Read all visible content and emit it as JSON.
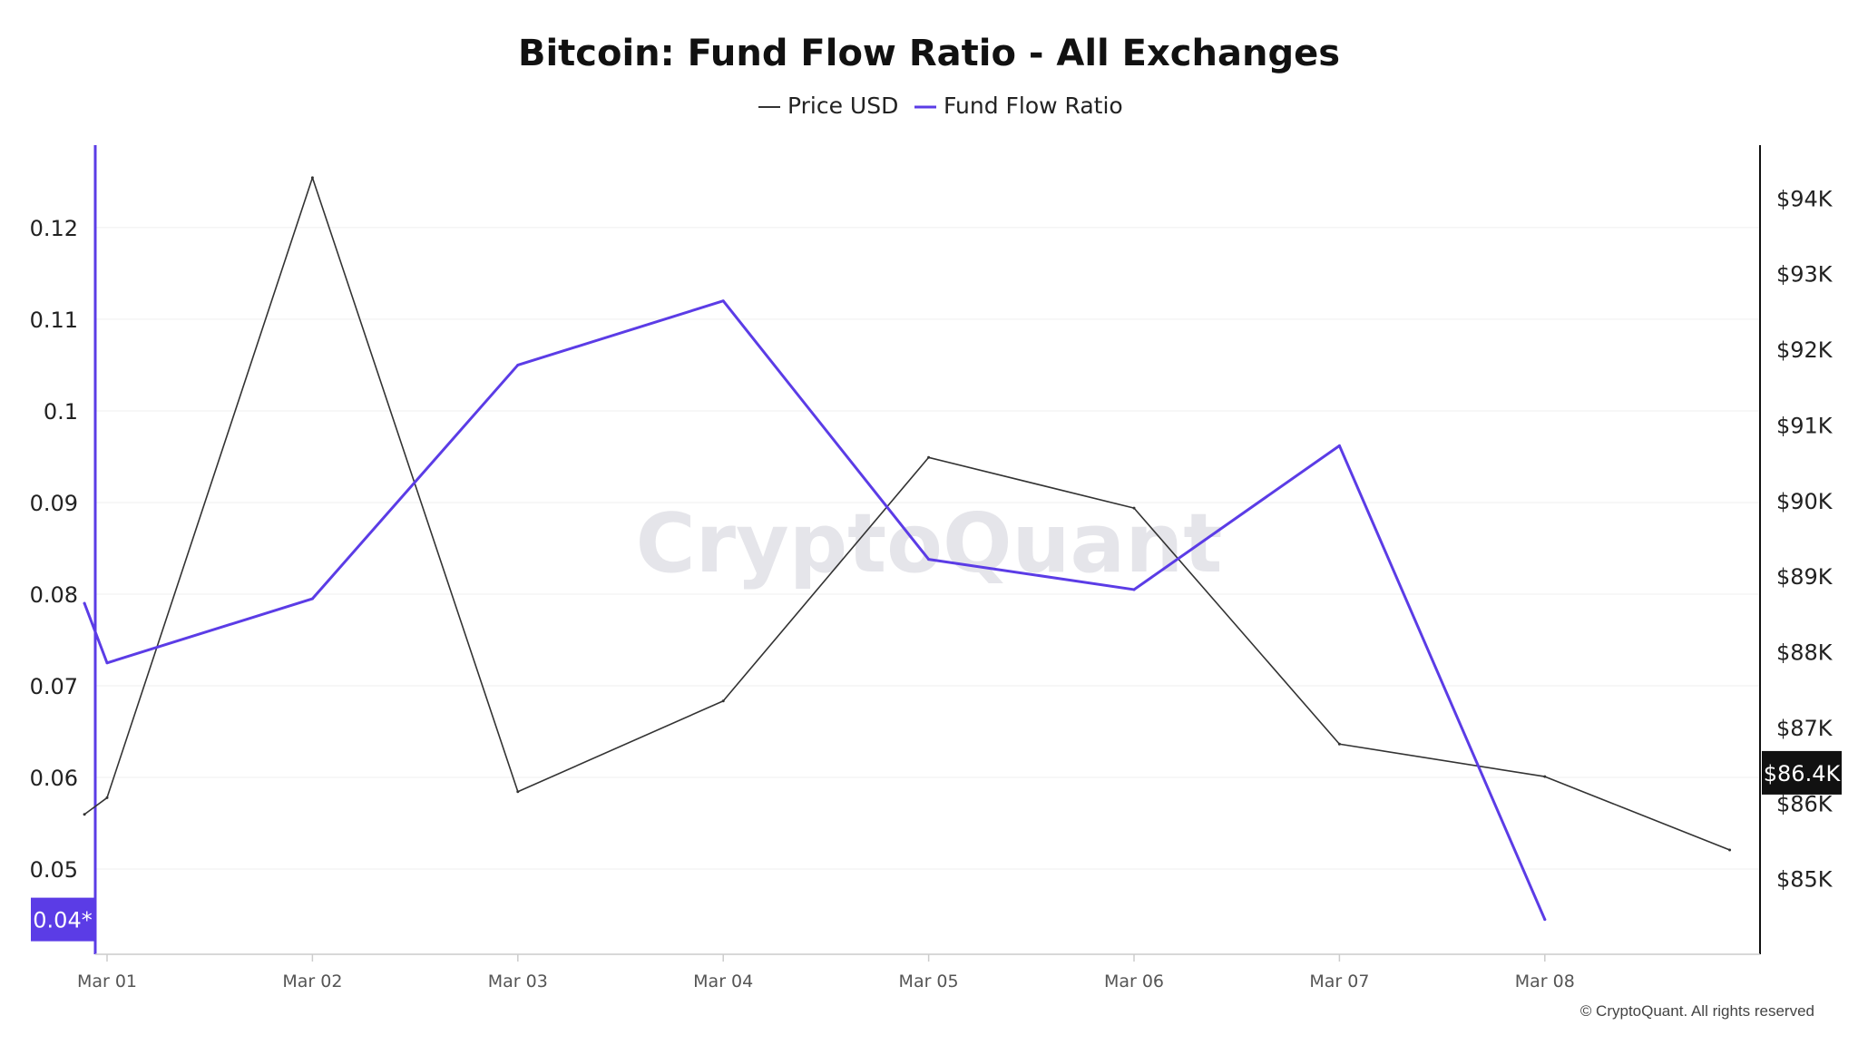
{
  "chart_data": {
    "type": "line",
    "title": "Bitcoin: Fund Flow Ratio - All Exchanges",
    "legend": [
      {
        "name": "Price USD",
        "color": "#333333"
      },
      {
        "name": "Fund Flow Ratio",
        "color": "#5b3ce6"
      }
    ],
    "x_ticks": [
      "Mar 01",
      "Mar 02",
      "Mar 03",
      "Mar 04",
      "Mar 05",
      "Mar 06",
      "Mar 07",
      "Mar 08"
    ],
    "left_axis": {
      "ticks": [
        "0.05",
        "0.06",
        "0.07",
        "0.08",
        "0.09",
        "0.1",
        "0.11",
        "0.12"
      ],
      "tick_values": [
        0.05,
        0.06,
        0.07,
        0.08,
        0.09,
        0.1,
        0.11,
        0.12
      ],
      "ylim": [
        0.0407,
        0.129
      ],
      "current_label": "0.04*",
      "current_value": 0.0445
    },
    "right_axis": {
      "ticks": [
        "$85K",
        "$86K",
        "$87K",
        "$88K",
        "$89K",
        "$90K",
        "$91K",
        "$92K",
        "$93K",
        "$94K"
      ],
      "tick_values": [
        85000,
        86000,
        87000,
        88000,
        89000,
        90000,
        91000,
        92000,
        93000,
        94000
      ],
      "ylim": [
        84000,
        94700
      ],
      "current_label": "$86.4K",
      "current_value": 86400
    },
    "x_range": [
      -0.11,
      7.9
    ],
    "series": [
      {
        "name": "Fund Flow Ratio",
        "axis": "left",
        "x": [
          -0.11,
          0,
          1,
          2,
          3,
          4,
          5,
          6,
          7
        ],
        "values": [
          0.079,
          0.0725,
          0.0795,
          0.105,
          0.112,
          0.0838,
          0.0805,
          0.0962,
          0.0445
        ]
      },
      {
        "name": "Price USD",
        "axis": "right",
        "x": [
          -0.11,
          0,
          1,
          2,
          3,
          4,
          5,
          6,
          7,
          7.9
        ],
        "values": [
          85850,
          86070,
          94270,
          86150,
          87350,
          90570,
          89900,
          86780,
          86350,
          85380
        ]
      }
    ],
    "watermark": "CryptoQuant",
    "copyright": "© CryptoQuant. All rights reserved"
  }
}
